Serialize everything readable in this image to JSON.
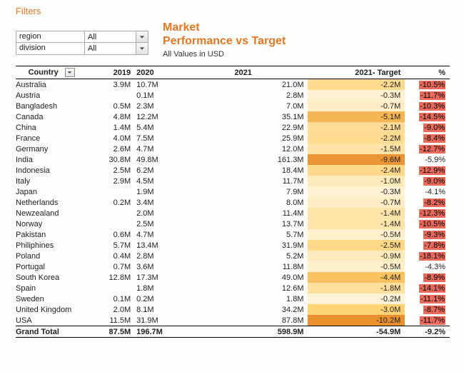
{
  "filters_title": "Filters",
  "filters": [
    {
      "label": "region",
      "value": "All"
    },
    {
      "label": "division",
      "value": "All"
    }
  ],
  "title_line1": "Market",
  "title_line2": "Performance vs Target",
  "subtitle": "All Values in USD",
  "columns": {
    "country": "Country",
    "y2019": "2019",
    "y2020": "2020",
    "y2021": "2021",
    "target": "2021- Target",
    "pct": "%"
  },
  "target_heat_palette": {
    "min_color": "#fff6e0",
    "mid_color": "#ffcf6b",
    "max_color": "#e8902e"
  },
  "pct_highlight_color": "#e96a5a",
  "rows": [
    {
      "country": "Australia",
      "y2019": "3.9M",
      "y2020": "10.7M",
      "y2021": "21.0M",
      "target": "-2.2M",
      "target_heat": 0.34,
      "pct": "-10.5%",
      "pct_hl": true
    },
    {
      "country": "Austria",
      "y2019": "",
      "y2020": "0.1M",
      "y2021": "2.8M",
      "target": "-0.3M",
      "target_heat": 0.06,
      "pct": "-11.7%",
      "pct_hl": true
    },
    {
      "country": "Bangladesh",
      "y2019": "0.5M",
      "y2020": "2.3M",
      "y2021": "7.0M",
      "target": "-0.7M",
      "target_heat": 0.11,
      "pct": "-10.3%",
      "pct_hl": true
    },
    {
      "country": "Canada",
      "y2019": "4.8M",
      "y2020": "12.2M",
      "y2021": "35.1M",
      "target": "-5.1M",
      "target_heat": 0.7,
      "pct": "-14.5%",
      "pct_hl": true
    },
    {
      "country": "China",
      "y2019": "1.4M",
      "y2020": "5.4M",
      "y2021": "22.9M",
      "target": "-2.1M",
      "target_heat": 0.33,
      "pct": "-9.0%",
      "pct_hl": true
    },
    {
      "country": "France",
      "y2019": "4.0M",
      "y2020": "7.5M",
      "y2021": "25.9M",
      "target": "-2.2M",
      "target_heat": 0.34,
      "pct": "-8.4%",
      "pct_hl": true
    },
    {
      "country": "Germany",
      "y2019": "2.6M",
      "y2020": "4.7M",
      "y2021": "12.0M",
      "target": "-1.5M",
      "target_heat": 0.25,
      "pct": "-12.7%",
      "pct_hl": true
    },
    {
      "country": "India",
      "y2019": "30.8M",
      "y2020": "49.8M",
      "y2021": "161.3M",
      "target": "-9.6M",
      "target_heat": 0.96,
      "pct": "-5.9%",
      "pct_hl": false
    },
    {
      "country": "Indonesia",
      "y2019": "2.5M",
      "y2020": "6.2M",
      "y2021": "18.4M",
      "target": "-2.4M",
      "target_heat": 0.37,
      "pct": "-12.9%",
      "pct_hl": true
    },
    {
      "country": "Italy",
      "y2019": "2.9M",
      "y2020": "4.5M",
      "y2021": "11.7M",
      "target": "-1.0M",
      "target_heat": 0.16,
      "pct": "-9.0%",
      "pct_hl": true
    },
    {
      "country": "Japan",
      "y2019": "",
      "y2020": "1.9M",
      "y2021": "7.9M",
      "target": "-0.3M",
      "target_heat": 0.06,
      "pct": "-4.1%",
      "pct_hl": false
    },
    {
      "country": "Netherlands",
      "y2019": "0.2M",
      "y2020": "3.4M",
      "y2021": "8.0M",
      "target": "-0.7M",
      "target_heat": 0.11,
      "pct": "-8.2%",
      "pct_hl": true
    },
    {
      "country": "Newzealand",
      "y2019": "",
      "y2020": "2.0M",
      "y2021": "11.4M",
      "target": "-1.4M",
      "target_heat": 0.23,
      "pct": "-12.3%",
      "pct_hl": true
    },
    {
      "country": "Norway",
      "y2019": "",
      "y2020": "2.5M",
      "y2021": "13.7M",
      "target": "-1.4M",
      "target_heat": 0.23,
      "pct": "-10.5%",
      "pct_hl": true
    },
    {
      "country": "Pakistan",
      "y2019": "0.6M",
      "y2020": "4.7M",
      "y2021": "5.7M",
      "target": "-0.5M",
      "target_heat": 0.09,
      "pct": "-9.3%",
      "pct_hl": true
    },
    {
      "country": "Philiphines",
      "y2019": "5.7M",
      "y2020": "13.4M",
      "y2021": "31.9M",
      "target": "-2.5M",
      "target_heat": 0.38,
      "pct": "-7.8%",
      "pct_hl": true
    },
    {
      "country": "Poland",
      "y2019": "0.4M",
      "y2020": "2.8M",
      "y2021": "5.2M",
      "target": "-0.9M",
      "target_heat": 0.15,
      "pct": "-18.1%",
      "pct_hl": true
    },
    {
      "country": "Portugal",
      "y2019": "0.7M",
      "y2020": "3.6M",
      "y2021": "11.8M",
      "target": "-0.5M",
      "target_heat": 0.09,
      "pct": "-4.3%",
      "pct_hl": false
    },
    {
      "country": "South Korea",
      "y2019": "12.8M",
      "y2020": "17.3M",
      "y2021": "49.0M",
      "target": "-4.4M",
      "target_heat": 0.6,
      "pct": "-8.9%",
      "pct_hl": true
    },
    {
      "country": "Spain",
      "y2019": "",
      "y2020": "1.8M",
      "y2021": "12.6M",
      "target": "-1.8M",
      "target_heat": 0.29,
      "pct": "-14.1%",
      "pct_hl": true
    },
    {
      "country": "Sweden",
      "y2019": "0.1M",
      "y2020": "0.2M",
      "y2021": "1.8M",
      "target": "-0.2M",
      "target_heat": 0.04,
      "pct": "-11.1%",
      "pct_hl": true
    },
    {
      "country": "United Kingdom",
      "y2019": "2.0M",
      "y2020": "8.1M",
      "y2021": "34.2M",
      "target": "-3.0M",
      "target_heat": 0.46,
      "pct": "-8.7%",
      "pct_hl": true
    },
    {
      "country": "USA",
      "y2019": "11.5M",
      "y2020": "31.9M",
      "y2021": "87.8M",
      "target": "-10.2M",
      "target_heat": 1.0,
      "pct": "-11.7%",
      "pct_hl": true
    }
  ],
  "grand_total": {
    "label": "Grand Total",
    "y2019": "87.5M",
    "y2020": "196.7M",
    "y2021": "598.9M",
    "target": "-54.9M",
    "pct": "-9.2%"
  }
}
